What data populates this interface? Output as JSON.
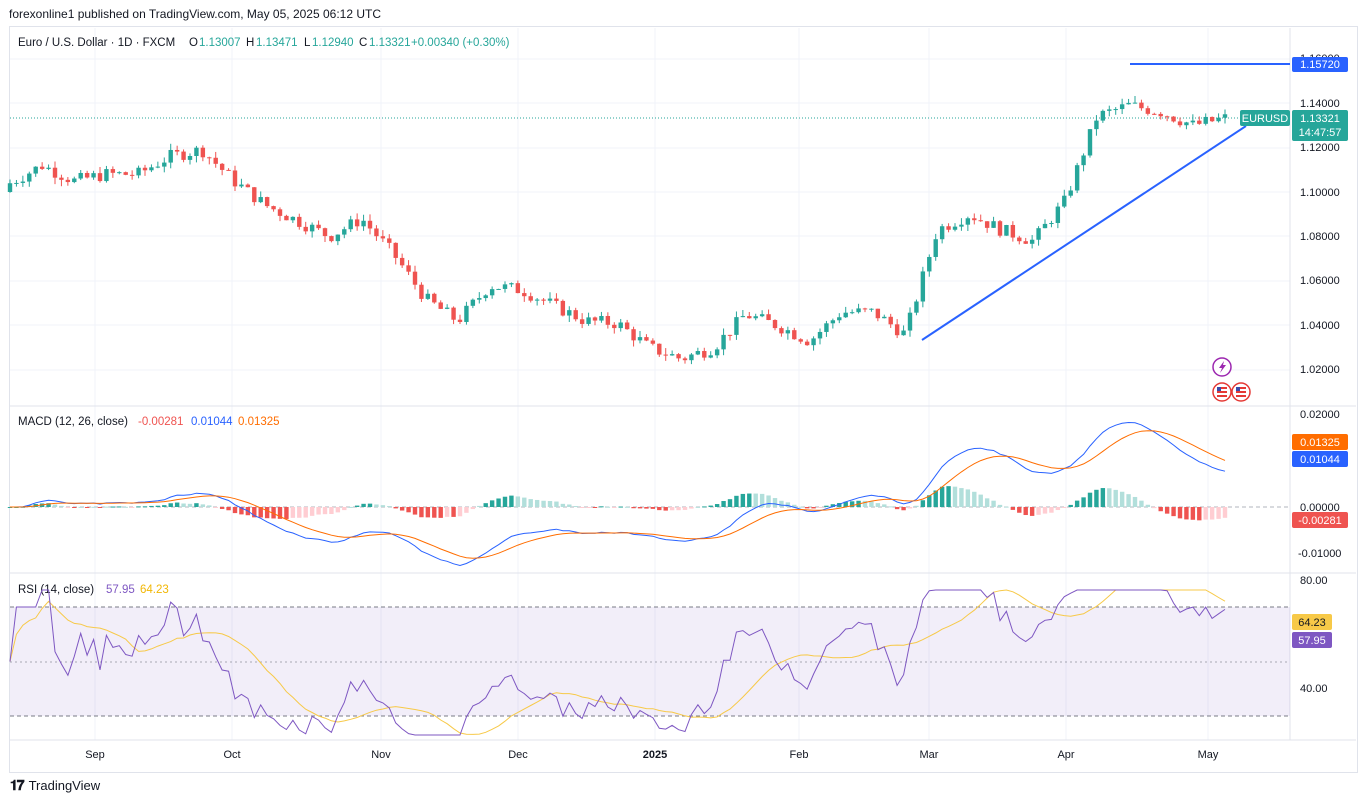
{
  "header": {
    "published": "forexonline1 published on TradingView.com, May 05, 2025 06:12 UTC",
    "symbol": "Euro / U.S. Dollar · 1D · FXCM",
    "o_label": "O",
    "o": "1.13007",
    "h_label": "H",
    "h": "1.13471",
    "l_label": "L",
    "l": "1.12940",
    "c_label": "C",
    "c": "1.13321",
    "change": "+0.00340 (+0.30%)"
  },
  "price_axis": {
    "ticks": [
      "1.14000",
      "1.12000",
      "1.10000",
      "1.08000",
      "1.06000",
      "1.04000",
      "1.02000"
    ],
    "top_partial": "1.16000",
    "resistance_label": "1.15720",
    "symbol_tag": "EURUSD",
    "last_price": "1.13321",
    "countdown": "14:47:57"
  },
  "macd": {
    "title": "MACD (12, 26, close)",
    "v_hist": "-0.00281",
    "v_macd": "0.01044",
    "v_signal": "0.01325",
    "ticks": [
      "0.02000",
      "0.00000",
      "-0.01000"
    ],
    "tag_signal": "0.01325",
    "tag_macd": "0.01044",
    "tag_hist": "-0.00281"
  },
  "rsi": {
    "title": "RSI (14, close)",
    "v_rsi": "57.95",
    "v_ma": "64.23",
    "ticks": [
      "80.00",
      "40.00"
    ],
    "tag_ma": "64.23",
    "tag_rsi": "57.95"
  },
  "time_axis": [
    "Sep",
    "Oct",
    "Nov",
    "Dec",
    "2025",
    "Jan",
    "Feb",
    "Mar",
    "Apr",
    "May"
  ],
  "brand": "TradingView",
  "colors": {
    "up": "#26a69a",
    "down": "#ef5350",
    "macd": "#2962ff",
    "signal": "#ff6d00",
    "rsi": "#7e57c2",
    "rsi_ma": "#f7c948",
    "trend": "#2962ff"
  },
  "chart_data": {
    "type": "candlestick",
    "symbol": "EURUSD",
    "resistance": 1.1572,
    "trendline": [
      {
        "date": "2025-02-28",
        "y": 1.0325
      },
      {
        "date": "2025-05-05",
        "y": 1.1285
      }
    ],
    "candles": [
      {
        "d": "2024-08-12",
        "o": 1.1,
        "c": 1.104
      },
      {
        "d": "2024-08-19",
        "o": 1.103,
        "c": 1.112
      },
      {
        "d": "2024-08-26",
        "o": 1.117,
        "c": 1.105
      },
      {
        "d": "2024-09-02",
        "o": 1.105,
        "c": 1.108
      },
      {
        "d": "2024-09-09",
        "o": 1.103,
        "c": 1.108
      },
      {
        "d": "2024-09-16",
        "o": 1.109,
        "c": 1.116
      },
      {
        "d": "2024-09-23",
        "o": 1.116,
        "c": 1.119
      },
      {
        "d": "2024-09-30",
        "o": 1.113,
        "c": 1.105
      },
      {
        "d": "2024-10-07",
        "o": 1.098,
        "c": 1.094
      },
      {
        "d": "2024-10-14",
        "o": 1.094,
        "c": 1.087
      },
      {
        "d": "2024-10-21",
        "o": 1.086,
        "c": 1.08
      },
      {
        "d": "2024-10-28",
        "o": 1.08,
        "c": 1.088
      },
      {
        "d": "2024-11-04",
        "o": 1.092,
        "c": 1.072
      },
      {
        "d": "2024-11-11",
        "o": 1.064,
        "c": 1.052
      },
      {
        "d": "2024-11-18",
        "o": 1.056,
        "c": 1.042
      },
      {
        "d": "2024-11-25",
        "o": 1.05,
        "c": 1.058
      },
      {
        "d": "2024-12-02",
        "o": 1.054,
        "c": 1.056
      },
      {
        "d": "2024-12-09",
        "o": 1.052,
        "c": 1.049
      },
      {
        "d": "2024-12-16",
        "o": 1.05,
        "c": 1.042
      },
      {
        "d": "2024-12-23",
        "o": 1.04,
        "c": 1.041
      },
      {
        "d": "2024-12-30",
        "o": 1.042,
        "c": 1.03
      },
      {
        "d": "2025-01-06",
        "o": 1.03,
        "c": 1.025
      },
      {
        "d": "2025-01-13",
        "o": 1.025,
        "c": 1.03
      },
      {
        "d": "2025-01-20",
        "o": 1.036,
        "c": 1.045
      },
      {
        "d": "2025-01-27",
        "o": 1.048,
        "c": 1.04
      },
      {
        "d": "2025-02-03",
        "o": 1.027,
        "c": 1.033
      },
      {
        "d": "2025-02-10",
        "o": 1.035,
        "c": 1.046
      },
      {
        "d": "2025-02-17",
        "o": 1.046,
        "c": 1.046
      },
      {
        "d": "2025-02-24",
        "o": 1.048,
        "c": 1.036
      },
      {
        "d": "2025-03-03",
        "o": 1.04,
        "c": 1.083
      },
      {
        "d": "2025-03-10",
        "o": 1.086,
        "c": 1.09
      },
      {
        "d": "2025-03-17",
        "o": 1.093,
        "c": 1.083
      },
      {
        "d": "2025-03-24",
        "o": 1.082,
        "c": 1.078
      },
      {
        "d": "2025-03-31",
        "o": 1.08,
        "c": 1.096
      },
      {
        "d": "2025-04-07",
        "o": 1.096,
        "c": 1.134
      },
      {
        "d": "2025-04-14",
        "o": 1.136,
        "c": 1.139
      },
      {
        "d": "2025-04-21",
        "o": 1.152,
        "c": 1.136
      },
      {
        "d": "2025-04-28",
        "o": 1.138,
        "c": 1.13
      },
      {
        "d": "2025-05-05",
        "o": 1.1301,
        "c": 1.1332
      }
    ],
    "macd": {
      "params": "12, 26, close",
      "macd": 0.01044,
      "signal": 0.01325,
      "histogram": -0.00281,
      "ylim": [
        -0.0115,
        0.0205
      ]
    },
    "rsi": {
      "params": "14, close",
      "rsi": 57.95,
      "rsi_ma": 64.23,
      "bands": [
        70,
        30
      ],
      "midline": 50
    }
  }
}
